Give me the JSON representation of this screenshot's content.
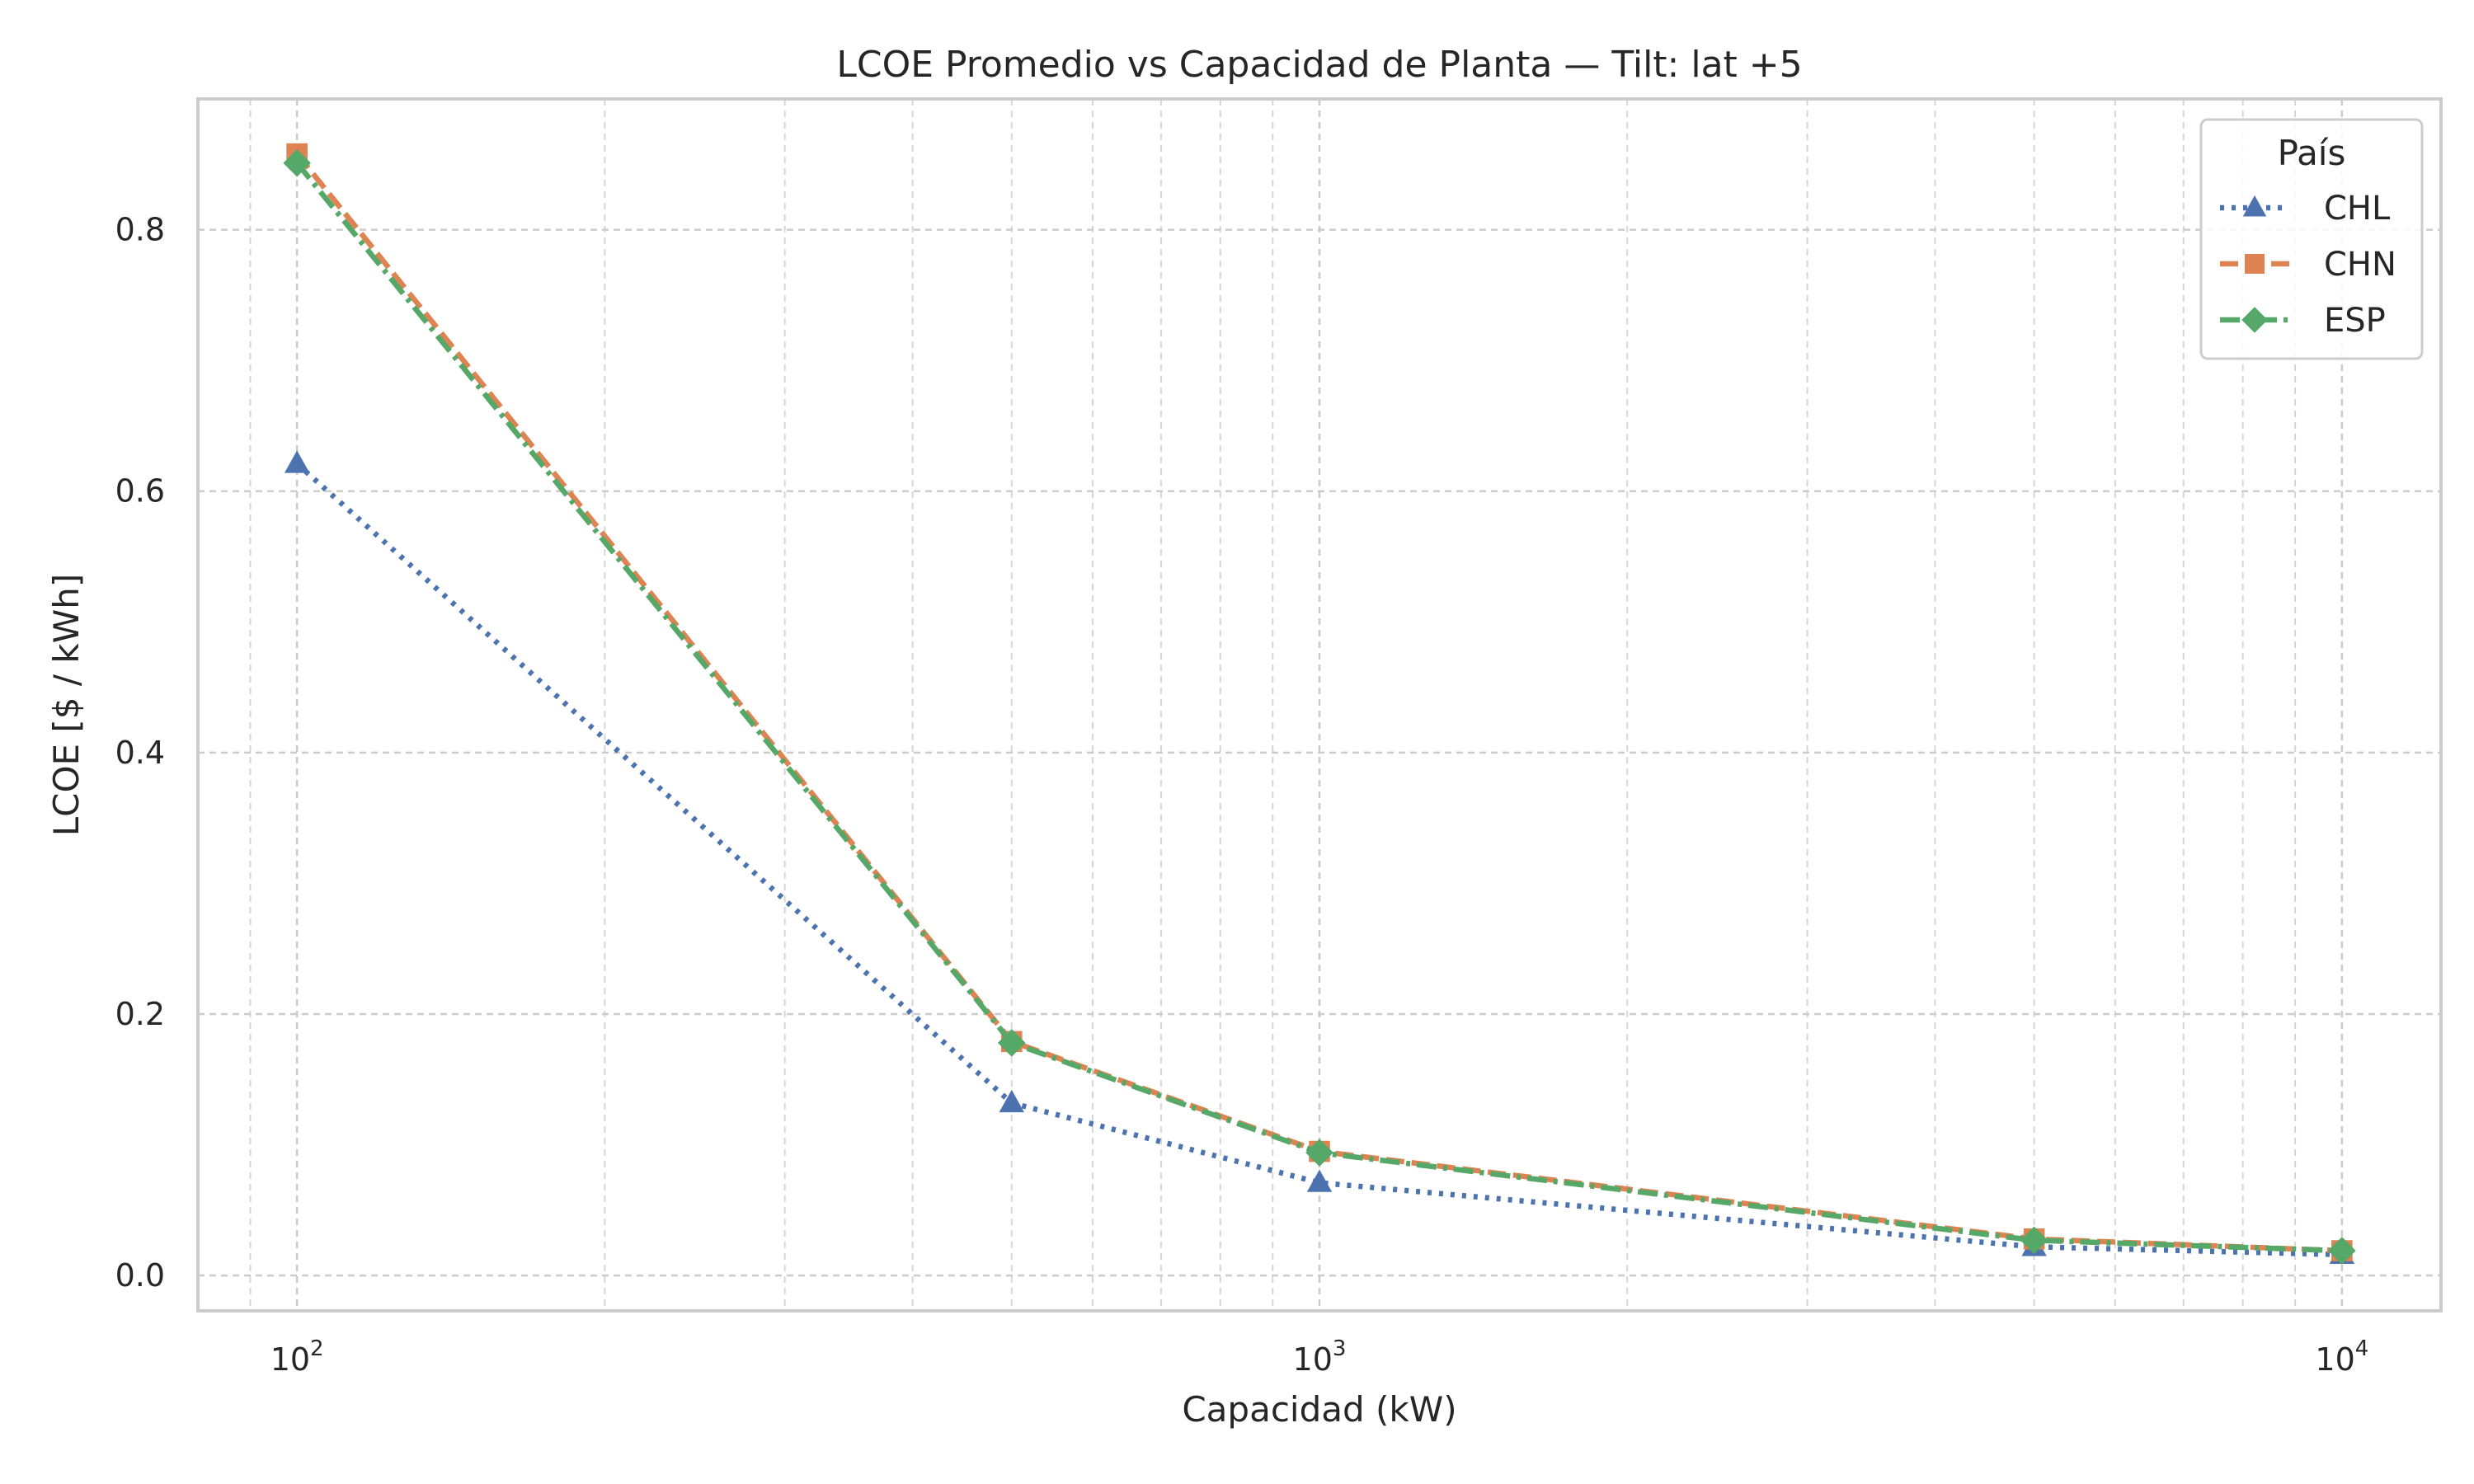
{
  "chart_data": {
    "type": "line",
    "title": "LCOE Promedio vs Capacidad de Planta — Tilt: lat +5",
    "xlabel": "Capacidad (kW)",
    "ylabel": "LCOE [$ / kWh]",
    "xscale": "log",
    "xlim": [
      80,
      12500
    ],
    "ylim": [
      -0.027,
      0.9
    ],
    "x_ticks": [
      {
        "base": "10",
        "exp": "2",
        "value": 100
      },
      {
        "base": "10",
        "exp": "3",
        "value": 1000
      },
      {
        "base": "10",
        "exp": "4",
        "value": 10000
      }
    ],
    "y_ticks": [
      {
        "label": "0.0",
        "value": 0.0
      },
      {
        "label": "0.2",
        "value": 0.2
      },
      {
        "label": "0.4",
        "value": 0.4
      },
      {
        "label": "0.6",
        "value": 0.6
      },
      {
        "label": "0.8",
        "value": 0.8
      }
    ],
    "grid": true,
    "legend": {
      "title": "País",
      "position": "top-right"
    },
    "x": [
      100,
      500,
      1000,
      5000,
      10000
    ],
    "series": [
      {
        "name": "CHL",
        "values": [
          0.621,
          0.132,
          0.071,
          0.022,
          0.016
        ],
        "color": "#4c72b0",
        "marker": "triangle",
        "linestyle": "dotted"
      },
      {
        "name": "CHN",
        "values": [
          0.858,
          0.179,
          0.095,
          0.028,
          0.019
        ],
        "color": "#dd8452",
        "marker": "square",
        "linestyle": "dashed"
      },
      {
        "name": "ESP",
        "values": [
          0.851,
          0.178,
          0.094,
          0.027,
          0.019
        ],
        "color": "#55a868",
        "marker": "diamond",
        "linestyle": "dashdot"
      }
    ]
  }
}
